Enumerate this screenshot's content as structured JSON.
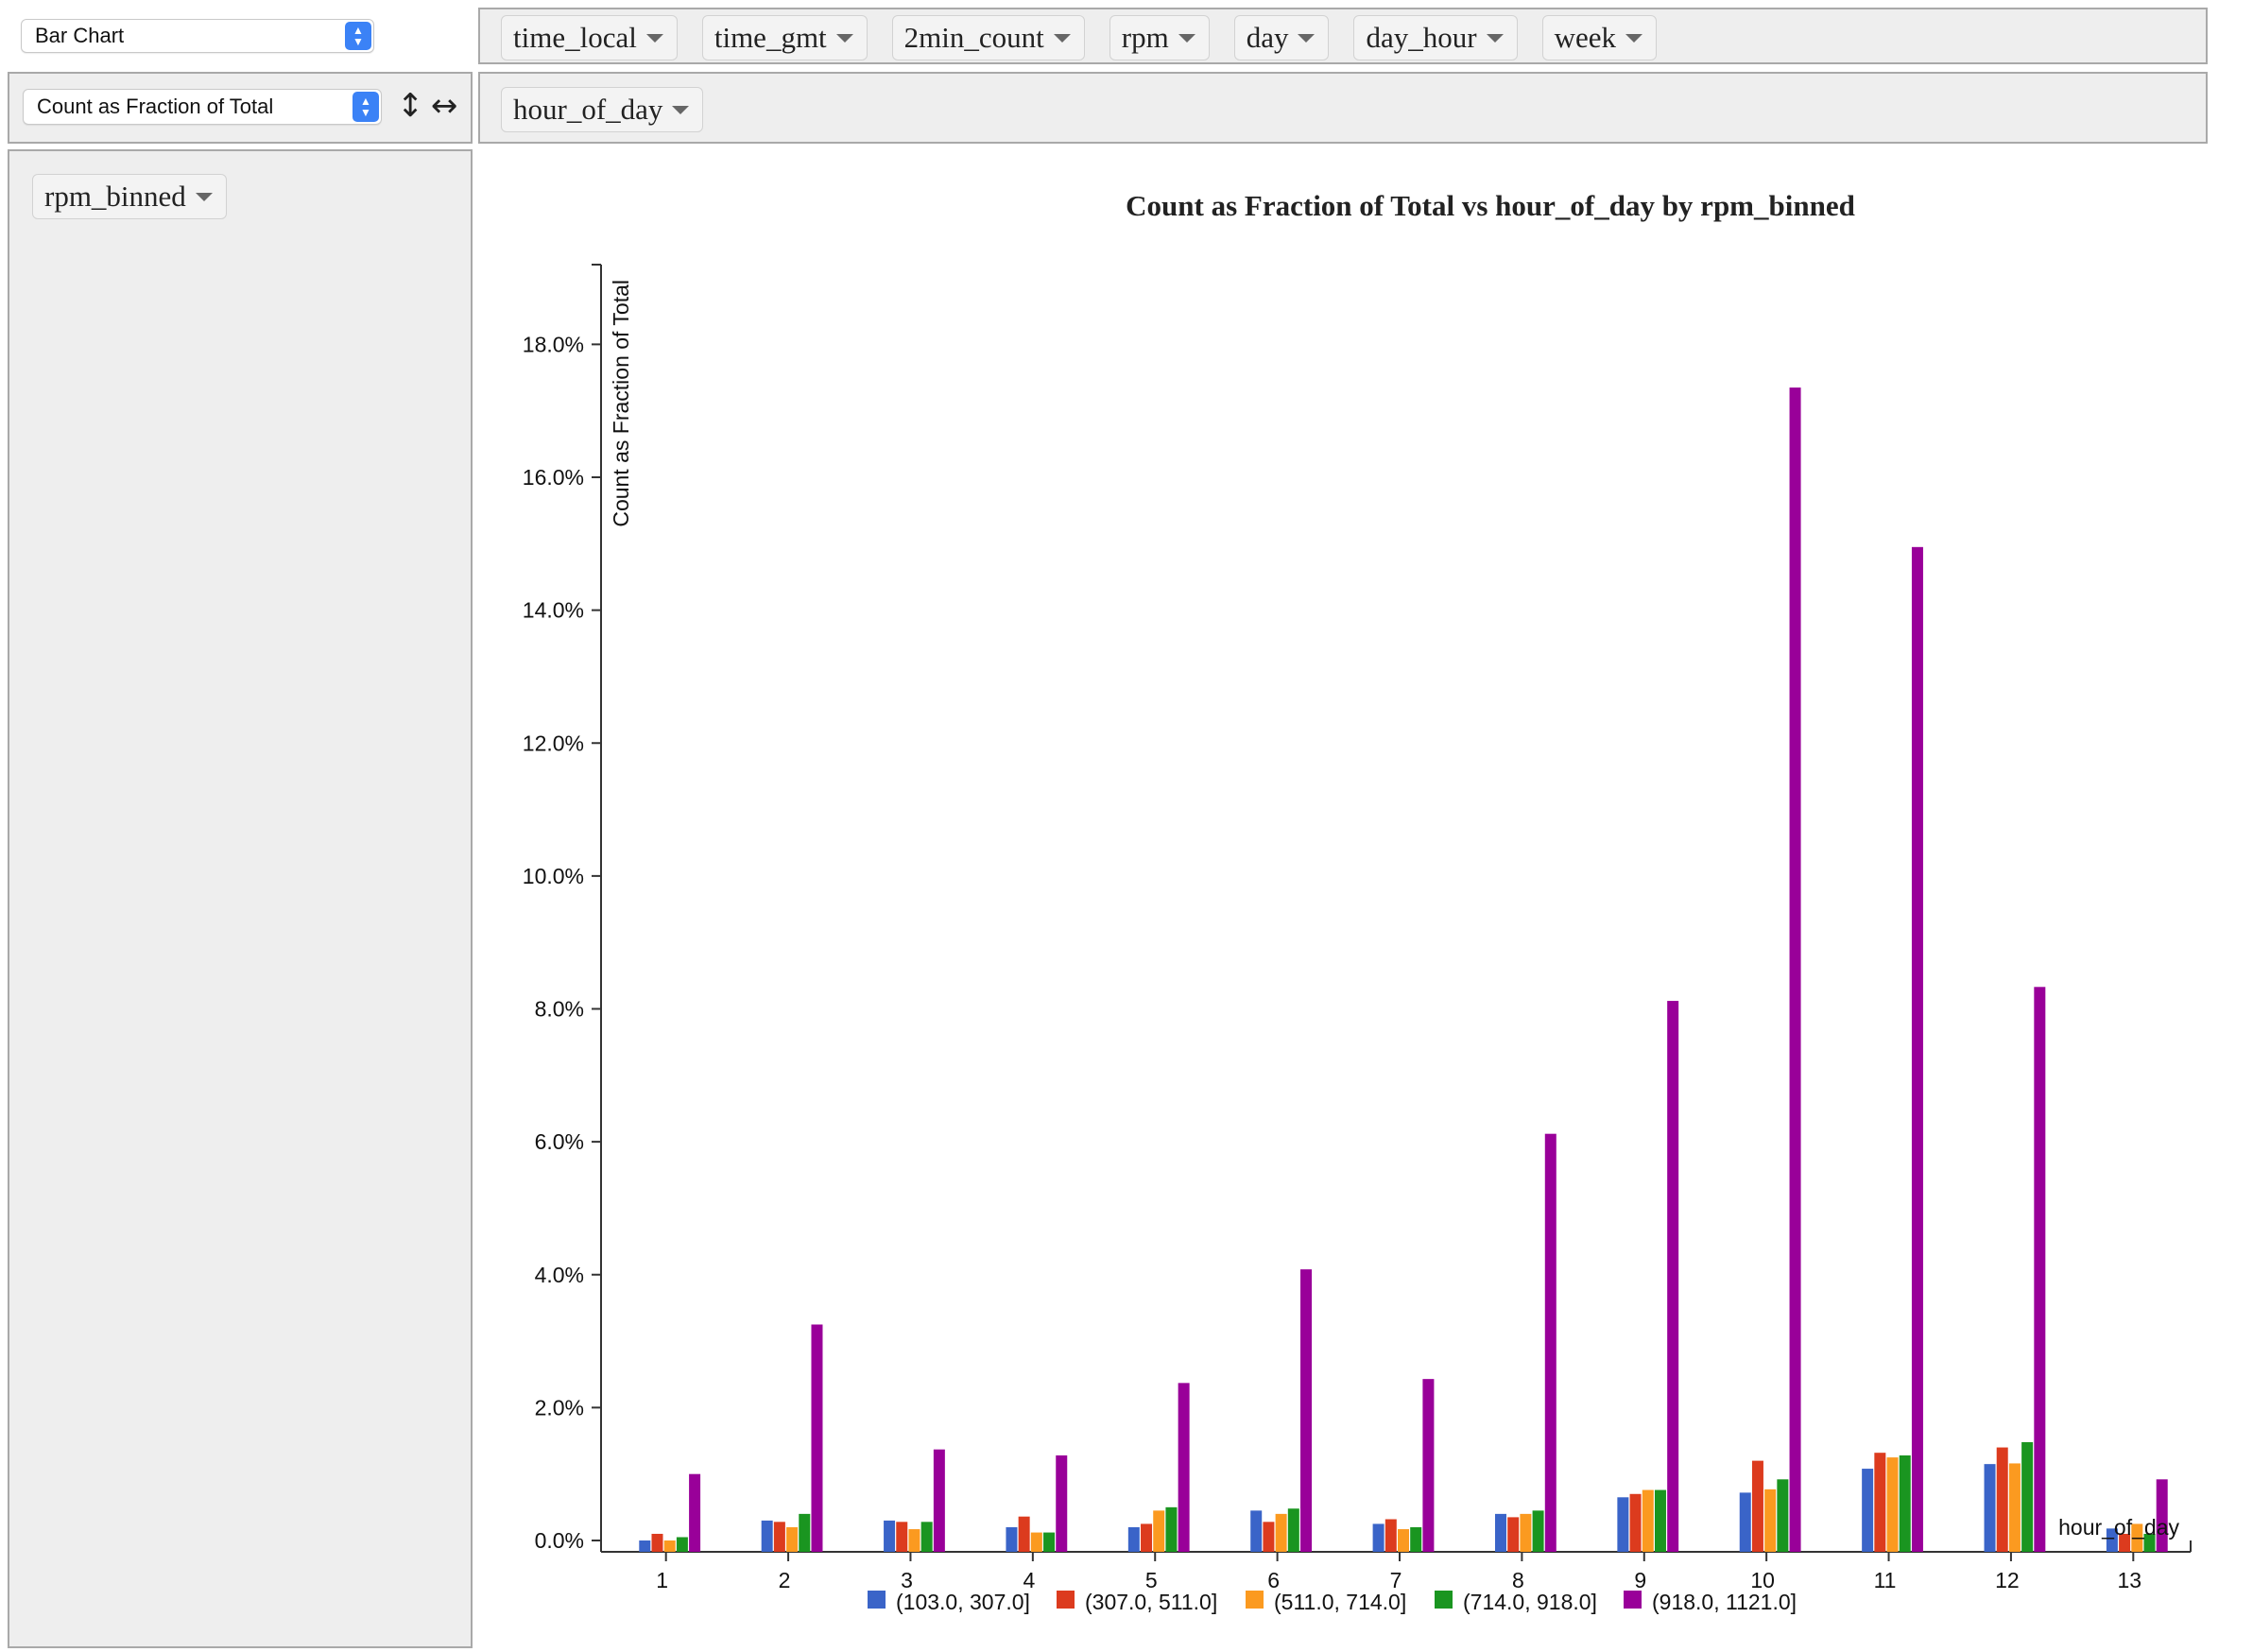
{
  "controls": {
    "renderer": "Bar Chart",
    "aggregator": "Count as Fraction of Total",
    "row_sort_icon": "↕",
    "col_sort_icon": "↔"
  },
  "unused_fields": [
    "time_local",
    "time_gmt",
    "2min_count",
    "rpm",
    "day",
    "day_hour",
    "week"
  ],
  "col_fields": [
    "hour_of_day"
  ],
  "row_fields": [
    "rpm_binned"
  ],
  "chart_data": {
    "type": "bar",
    "title": "Count as Fraction of Total vs hour_of_day by rpm_binned",
    "xlabel": "hour_of_day",
    "ylabel": "Count as Fraction of Total",
    "categories": [
      "1",
      "2",
      "3",
      "4",
      "5",
      "6",
      "7",
      "8",
      "9",
      "10",
      "11",
      "12",
      "13"
    ],
    "ylim": [
      0,
      19.2
    ],
    "yticks": [
      0,
      2,
      4,
      6,
      8,
      10,
      12,
      14,
      16,
      18
    ],
    "ytick_labels": [
      "0.0%",
      "2.0%",
      "4.0%",
      "6.0%",
      "8.0%",
      "10.0%",
      "12.0%",
      "14.0%",
      "16.0%",
      "18.0%"
    ],
    "grid": false,
    "legend_position": "bottom",
    "series": [
      {
        "name": "(103.0, 307.0]",
        "color": "#3a64c8",
        "values": [
          0.0,
          0.3,
          0.3,
          0.2,
          0.2,
          0.45,
          0.25,
          0.4,
          0.65,
          0.72,
          1.08,
          1.15,
          0.18
        ]
      },
      {
        "name": "(307.0, 511.0]",
        "color": "#dc3b1e",
        "values": [
          0.1,
          0.28,
          0.28,
          0.36,
          0.25,
          0.28,
          0.32,
          0.35,
          0.7,
          1.2,
          1.32,
          1.4,
          0.1
        ]
      },
      {
        "name": "(511.0, 714.0]",
        "color": "#fb9a20",
        "values": [
          0.0,
          0.2,
          0.17,
          0.12,
          0.45,
          0.4,
          0.17,
          0.4,
          0.76,
          0.77,
          1.25,
          1.16,
          0.25
        ]
      },
      {
        "name": "(714.0, 918.0]",
        "color": "#1a9520",
        "values": [
          0.05,
          0.4,
          0.28,
          0.12,
          0.5,
          0.48,
          0.2,
          0.45,
          0.76,
          0.92,
          1.28,
          1.48,
          0.1
        ]
      },
      {
        "name": "(918.0, 1121.0]",
        "color": "#990099",
        "values": [
          1.0,
          3.25,
          1.37,
          1.28,
          2.37,
          4.08,
          2.43,
          6.12,
          8.12,
          17.35,
          14.95,
          8.33,
          0.92
        ]
      }
    ]
  }
}
